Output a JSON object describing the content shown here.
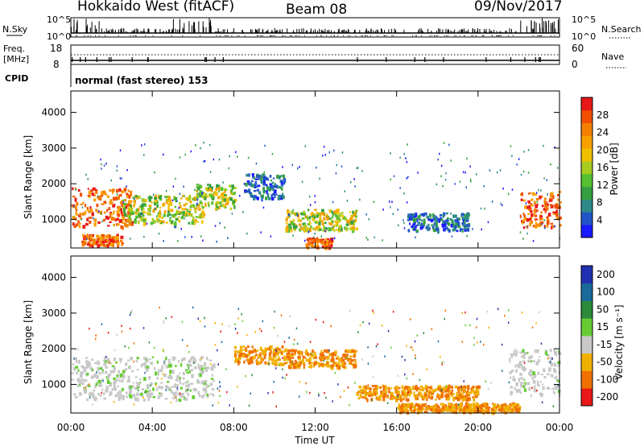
{
  "header": {
    "title": "Hokkaido West (fitACF)",
    "beam": "Beam 08",
    "date": "09/Nov/2017"
  },
  "noise_panel": {
    "left_label": "N.Sky",
    "left_ticks": [
      "10^5",
      "10^0"
    ],
    "right_ticks": [
      "10^5",
      "10^0"
    ],
    "right_label": "N.Search"
  },
  "freq_panel": {
    "left_label_line1": "Freq.",
    "left_label_line2": "[MHz]",
    "left_ticks": [
      "18",
      "8"
    ],
    "right_ticks": [
      "60",
      "0"
    ],
    "right_label": "Nave"
  },
  "cpid_panel": {
    "label": "CPID",
    "text": "normal (fast stereo) 153"
  },
  "x_axis": {
    "label": "Time UT",
    "ticks": [
      "00:00",
      "04:00",
      "08:00",
      "12:00",
      "16:00",
      "20:00",
      "00:00"
    ]
  },
  "chart_data": [
    {
      "type": "heatmap",
      "name": "power",
      "ylabel": "Slant Range [km]",
      "y_ticks": [
        "1000",
        "2000",
        "3000",
        "4000"
      ],
      "ylim": [
        200,
        4600
      ],
      "xlim_hours": [
        0,
        24
      ],
      "colorbar": {
        "label": "Power [dB]",
        "ticks": [
          "4",
          "8",
          "12",
          "16",
          "20",
          "24",
          "28"
        ],
        "range": [
          0,
          32
        ],
        "colors": [
          "#1a1aff",
          "#2255c8",
          "#2e8a8a",
          "#35a040",
          "#55c030",
          "#a8cc20",
          "#f0c000",
          "#f7a000",
          "#f48000",
          "#f05000",
          "#e81818"
        ]
      },
      "features": [
        {
          "t": [
            0.0,
            3.0
          ],
          "range": [
            800,
            1900
          ],
          "level": "high"
        },
        {
          "t": [
            0.5,
            2.5
          ],
          "range": [
            300,
            600
          ],
          "level": "high"
        },
        {
          "t": [
            2.5,
            6.5
          ],
          "range": [
            900,
            1700
          ],
          "level": "mid"
        },
        {
          "t": [
            6.0,
            8.0
          ],
          "range": [
            1300,
            2000
          ],
          "level": "mid"
        },
        {
          "t": [
            8.5,
            10.5
          ],
          "range": [
            1600,
            2300
          ],
          "level": "low"
        },
        {
          "t": [
            10.5,
            14.0
          ],
          "range": [
            700,
            1300
          ],
          "level": "mid"
        },
        {
          "t": [
            11.5,
            12.8
          ],
          "range": [
            250,
            500
          ],
          "level": "high"
        },
        {
          "t": [
            16.5,
            19.5
          ],
          "range": [
            700,
            1200
          ],
          "level": "low"
        },
        {
          "t": [
            22.0,
            24.0
          ],
          "range": [
            800,
            1800
          ],
          "level": "high"
        }
      ]
    },
    {
      "type": "heatmap",
      "name": "velocity",
      "ylabel": "Slant Range [km]",
      "y_ticks": [
        "1000",
        "2000",
        "3000",
        "4000"
      ],
      "ylim": [
        200,
        4600
      ],
      "xlim_hours": [
        0,
        24
      ],
      "colorbar": {
        "label": "Velocity [m s⁻¹]",
        "ticks": [
          "200",
          "100",
          "50",
          "15",
          "-15",
          "-50",
          "-100",
          "-200"
        ],
        "colors": [
          "#2030b0",
          "#1a6a9a",
          "#2a8a3a",
          "#66cc33",
          "#c8c8c8",
          "#f0b000",
          "#f07000",
          "#e81818"
        ]
      },
      "features": [
        {
          "t": [
            0.0,
            7.0
          ],
          "range": [
            600,
            1800
          ],
          "level": "ground"
        },
        {
          "t": [
            8.0,
            10.5
          ],
          "range": [
            1600,
            2100
          ],
          "level": "away"
        },
        {
          "t": [
            10.5,
            14.0
          ],
          "range": [
            1500,
            2000
          ],
          "level": "away"
        },
        {
          "t": [
            14.0,
            20.0
          ],
          "range": [
            600,
            1000
          ],
          "level": "away"
        },
        {
          "t": [
            16.0,
            22.0
          ],
          "range": [
            250,
            500
          ],
          "level": "away"
        },
        {
          "t": [
            21.5,
            24.0
          ],
          "range": [
            700,
            2000
          ],
          "level": "ground"
        }
      ]
    }
  ]
}
